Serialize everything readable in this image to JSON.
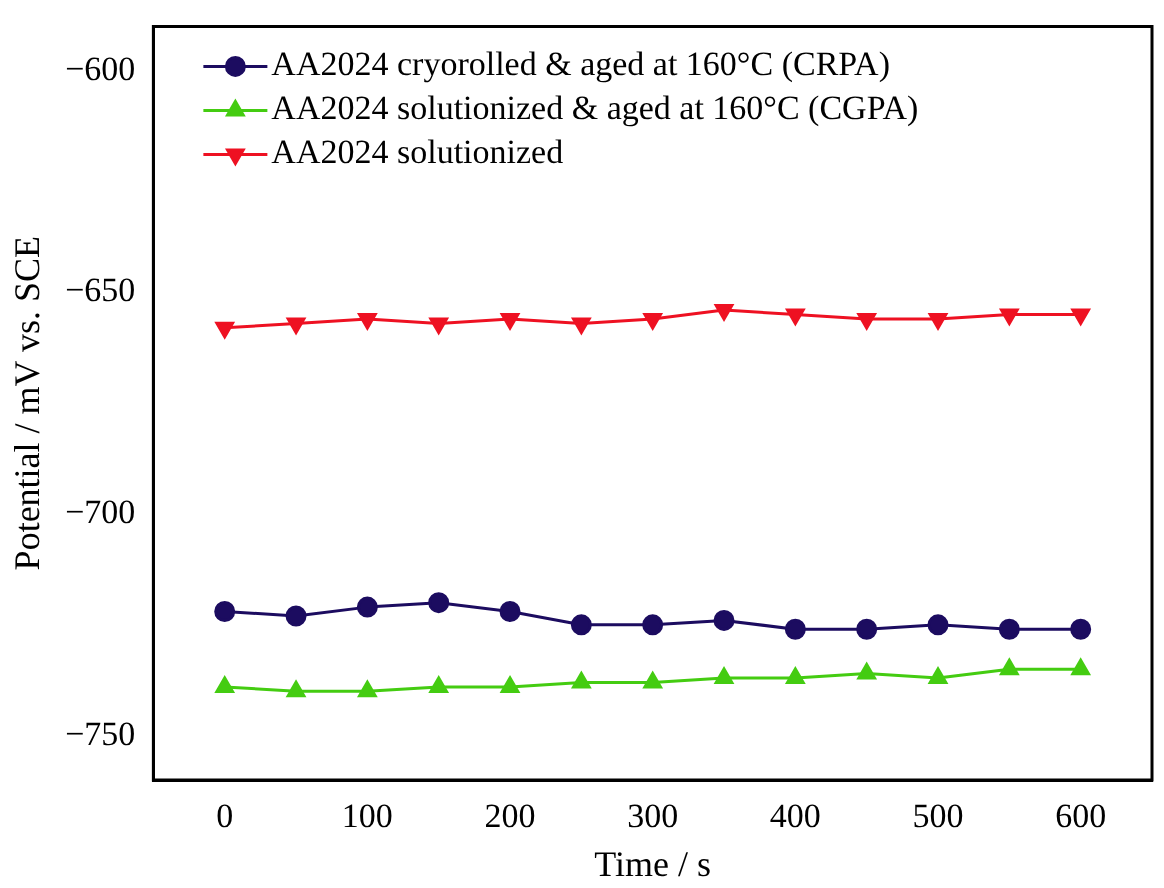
{
  "chart_data": {
    "type": "line",
    "xlabel": "Time / s",
    "ylabel": "Potential / mV vs. SCE",
    "x": [
      0,
      50,
      100,
      150,
      200,
      250,
      300,
      350,
      400,
      450,
      500,
      550,
      600
    ],
    "series": [
      {
        "name": "AA2024 cryorolled & aged at 160°C (CRPA)",
        "color": "#1c0c60",
        "marker": "circle",
        "values": [
          -722,
          -723,
          -721,
          -720,
          -722,
          -725,
          -725,
          -724,
          -726,
          -726,
          -725,
          -726,
          -726
        ]
      },
      {
        "name": "AA2024 solutionized & aged at 160°C (CGPA)",
        "color": "#44cc11",
        "marker": "triangle",
        "values": [
          -739,
          -740,
          -740,
          -739,
          -739,
          -738,
          -738,
          -737,
          -737,
          -736,
          -737,
          -735,
          -735
        ]
      },
      {
        "name": "AA2024 solutionized",
        "color": "#ee1122",
        "marker": "triangle-down",
        "values": [
          -658,
          -657,
          -656,
          -657,
          -656,
          -657,
          -656,
          -654,
          -655,
          -656,
          -656,
          -655,
          -655
        ]
      }
    ],
    "xlim": [
      -50,
      650
    ],
    "xticks": [
      0,
      100,
      200,
      300,
      400,
      500,
      600
    ],
    "ylim": [
      -760,
      -590
    ],
    "yticks": [
      -750,
      -700,
      -650,
      -600
    ],
    "grid": false,
    "legend": "top left"
  }
}
